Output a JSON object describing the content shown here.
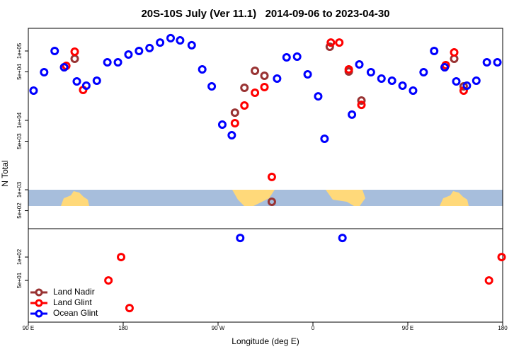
{
  "chart_data": [
    {
      "type": "scatter",
      "title": "20S-10S July (Ver 11.1)   2014-09-06 to 2023-04-30",
      "ylabel": "N Total",
      "log_y": true,
      "xlim": [
        90,
        540
      ],
      "ylim": [
        275,
        212000
      ],
      "yticks": [
        {
          "value": 100000,
          "label": "1e+05"
        },
        {
          "value": 50000,
          "label": "5e+04"
        },
        {
          "value": 10000,
          "label": "1e+04"
        },
        {
          "value": 5000,
          "label": "5e+03"
        },
        {
          "value": 1000,
          "label": "1e+03"
        },
        {
          "value": 500,
          "label": "5e+02"
        }
      ],
      "series": [
        {
          "color": "#993333",
          "x": [
            124,
            134,
            286,
            295,
            305,
            314,
            321,
            376,
            394,
            406,
            485,
            494,
            503
          ],
          "values": [
            58200,
            77300,
            12900,
            29500,
            51800,
            43900,
            672,
            115000,
            50600,
            19300,
            58200,
            77300,
            30900
          ]
        },
        {
          "color": "#ff0000",
          "x": [
            126,
            134,
            142,
            286,
            295,
            305,
            314,
            321,
            377,
            385,
            394,
            406,
            486,
            494,
            503
          ],
          "values": [
            61100,
            97700,
            27500,
            9100,
            16400,
            25000,
            30200,
            1530,
            132000,
            132000,
            54300,
            16700,
            62500,
            95400,
            26800
          ]
        },
        {
          "color": "#0000ff",
          "x": [
            95,
            105,
            115,
            124,
            136,
            145,
            155,
            165,
            175,
            185,
            195,
            205,
            215,
            225,
            234,
            245,
            255,
            264,
            274,
            283,
            326,
            335,
            345,
            355,
            365,
            371,
            397,
            404,
            415,
            425,
            435,
            445,
            455,
            465,
            475,
            485,
            496,
            506,
            515,
            525,
            535
          ],
          "values": [
            26800,
            49400,
            100000,
            58200,
            36400,
            31600,
            37300,
            68700,
            68700,
            89000,
            100000,
            110000,
            132000,
            153000,
            142000,
            121000,
            54300,
            30900,
            8690,
            6110,
            40000,
            80900,
            82800,
            46000,
            22200,
            5430,
            12100,
            64000,
            49400,
            40000,
            37300,
            31600,
            26800,
            49400,
            100000,
            58200,
            36400,
            31600,
            37300,
            68700,
            68700
          ]
        }
      ]
    },
    {
      "type": "scatter",
      "xlabel": "Longitude (deg E)",
      "log_y": true,
      "legend": "lower left",
      "xlim": [
        90,
        540
      ],
      "ylim": [
        14.5,
        232
      ],
      "xticks": [
        {
          "value": 90,
          "label": "90 E"
        },
        {
          "value": 180,
          "label": "180"
        },
        {
          "value": 270,
          "label": "90 W"
        },
        {
          "value": 360,
          "label": "0"
        },
        {
          "value": 450,
          "label": "90 E"
        },
        {
          "value": 540,
          "label": "180"
        }
      ],
      "yticks": [
        {
          "value": 100,
          "label": "1e+02"
        },
        {
          "value": 50,
          "label": "5e+01"
        }
      ],
      "series": [
        {
          "name": "Land Nadir",
          "color": "#993333",
          "x": [],
          "values": []
        },
        {
          "name": "Land Glint",
          "color": "#ff0000",
          "x": [
            166,
            178,
            186,
            527,
            539
          ],
          "values": [
            50,
            100,
            22,
            50,
            100
          ]
        },
        {
          "name": "Ocean Glint",
          "color": "#0000ff",
          "x": [
            291,
            388
          ],
          "values": [
            176,
            176
          ]
        }
      ]
    }
  ]
}
